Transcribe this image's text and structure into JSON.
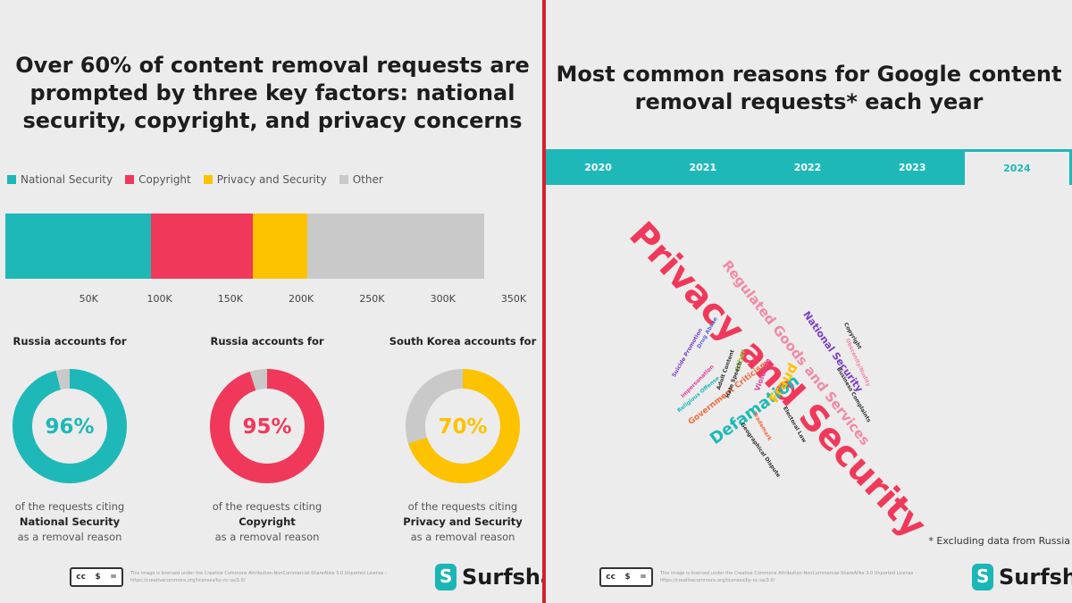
{
  "left": {
    "title": "Over 60% of content removal requests are prompted by three key factors: national security, copyright, and privacy concerns",
    "legend": [
      {
        "label": "National Security",
        "color": "#1fb8b8"
      },
      {
        "label": "Copyright",
        "color": "#f0395a"
      },
      {
        "label": "Privacy and Security",
        "color": "#fdc200"
      },
      {
        "label": "Other",
        "color": "#c9c9c9"
      }
    ],
    "donuts": [
      {
        "head": "Russia accounts for",
        "pct_label": "96%",
        "pct": 96,
        "color": "#1fb8b8",
        "cap1": "of the requests citing",
        "cap2": "National Security",
        "cap3": "as a removal reason"
      },
      {
        "head": "Russia accounts for",
        "pct_label": "95%",
        "pct": 95,
        "color": "#f0395a",
        "cap1": "of the requests citing",
        "cap2": "Copyright",
        "cap3": "as a removal reason"
      },
      {
        "head": "South Korea accounts for",
        "pct_label": "70%",
        "pct": 70,
        "color": "#fdc200",
        "cap1": "of the requests citing",
        "cap2": "Privacy and Security",
        "cap3": "as a removal reason"
      }
    ],
    "license_text": "This image is licensed under the Creative Commons Attribution-NonCommercial-ShareAlike 3.0 Unported License - https://creativecommons.org/licenses/by-nc-sa/3.0/",
    "cc_badge": [
      "cc",
      "$",
      "="
    ],
    "brand": "Surfshark"
  },
  "chart_data": {
    "type": "bar",
    "orientation": "horizontal-stacked",
    "series": [
      {
        "name": "National Security",
        "value": 103000
      },
      {
        "name": "Copyright",
        "value": 72000
      },
      {
        "name": "Privacy and Security",
        "value": 38000
      },
      {
        "name": "Other",
        "value": 125000
      }
    ],
    "xlim": [
      0,
      350000
    ],
    "ticks": [
      {
        "value": 50000,
        "label": "50K"
      },
      {
        "value": 100000,
        "label": "100K"
      },
      {
        "value": 150000,
        "label": "150K"
      },
      {
        "value": 200000,
        "label": "200K"
      },
      {
        "value": 250000,
        "label": "250K"
      },
      {
        "value": 300000,
        "label": "300K"
      },
      {
        "value": 350000,
        "label": "350K"
      }
    ],
    "legend_position": "top-left",
    "grid": false
  },
  "right": {
    "title": "Most common reasons for Google content removal requests* each year",
    "tabs": [
      "2020",
      "2021",
      "2022",
      "2023",
      "2024"
    ],
    "active_tab": "2024",
    "words": [
      {
        "text": "Privacy and Security",
        "color": "#f0395a"
      },
      {
        "text": "Regulated Goods and Services",
        "color": "#f08aa5"
      },
      {
        "text": "National Security",
        "color": "#7a3fc2"
      },
      {
        "text": "Defamation",
        "color": "#1fb8b8"
      },
      {
        "text": "Fraud",
        "color": "#fdc200"
      },
      {
        "text": "Government Criticism",
        "color": "#f06b3a"
      },
      {
        "text": "Violence",
        "color": "#e0409a"
      },
      {
        "text": "Other",
        "color": "#9bcc3c"
      },
      {
        "text": "Copyright",
        "color": "#333333"
      },
      {
        "text": "Drug Abuse",
        "color": "#5a6ad8"
      },
      {
        "text": "Adult Content",
        "color": "#333333"
      },
      {
        "text": "Hate Speech",
        "color": "#333333"
      },
      {
        "text": "Suicide Promotion",
        "color": "#7a3fc2"
      },
      {
        "text": "Trademark",
        "color": "#f06b3a"
      },
      {
        "text": "Religious Offense",
        "color": "#1fb8b8"
      },
      {
        "text": "Electoral Law",
        "color": "#333333"
      },
      {
        "text": "Impersonation",
        "color": "#e0409a"
      },
      {
        "text": "Obscenity/Nudity",
        "color": "#f08aa5"
      },
      {
        "text": "Geographical Dispute",
        "color": "#333333"
      },
      {
        "text": "Business Complaints",
        "color": "#333333"
      }
    ],
    "note": "* Excluding data from Russia",
    "license_text": "This image is licensed under the Creative Commons Attribution-NonCommercial-ShareAlike 3.0 Unported License - https://creativecommons.org/licenses/by-nc-sa/3.0/",
    "cc_badge": [
      "cc",
      "$",
      "="
    ],
    "brand": "Surfshark"
  }
}
